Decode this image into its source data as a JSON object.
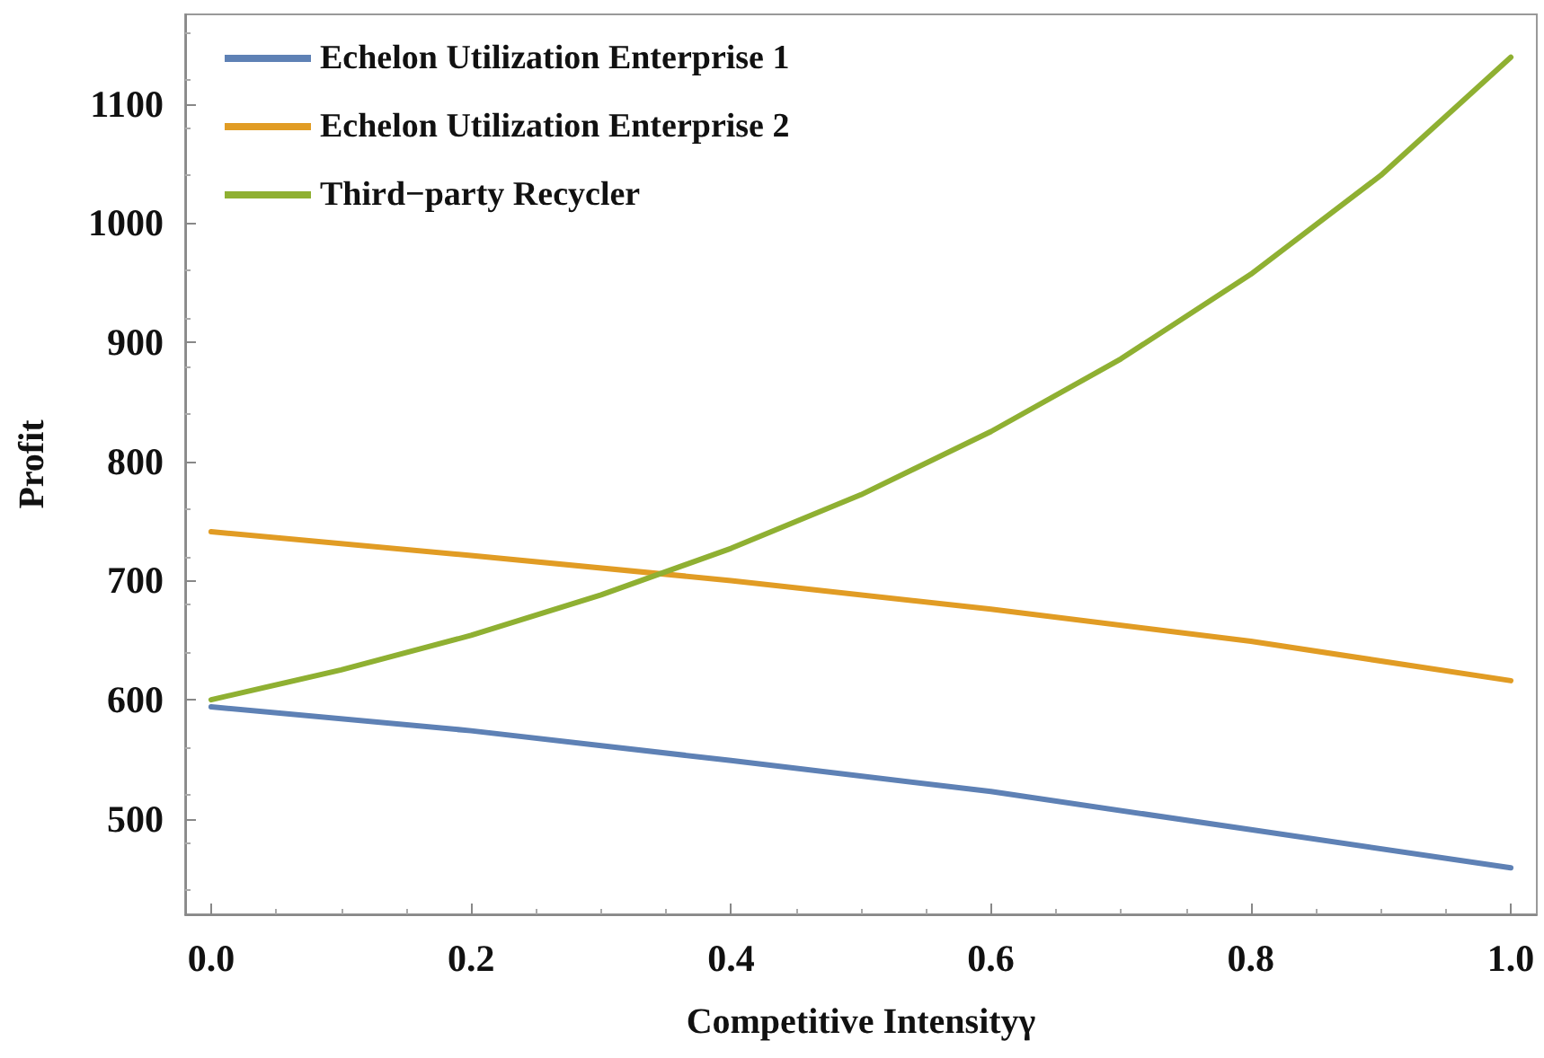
{
  "chart_data": {
    "type": "line",
    "xlabel": "Competitive Intensityγ",
    "ylabel": "Profit",
    "xlim": [
      -0.02,
      1.02
    ],
    "ylim": [
      420,
      1175
    ],
    "xticks": [
      {
        "value": 0,
        "label": "0.0"
      },
      {
        "value": 0.2,
        "label": "0.2"
      },
      {
        "value": 0.4,
        "label": "0.4"
      },
      {
        "value": 0.6,
        "label": "0.6"
      },
      {
        "value": 0.8,
        "label": "0.8"
      },
      {
        "value": 1,
        "label": "1.0"
      }
    ],
    "yticks": [
      500,
      600,
      700,
      800,
      900,
      1000,
      1100
    ],
    "grid": false,
    "legend": "top left",
    "marker": "none",
    "line_style": "solid",
    "series": [
      {
        "name": "Echelon Utilization Enterprise 1",
        "color": "#5e81b5",
        "x": [
          0,
          0.2,
          0.4,
          0.6,
          0.8,
          1
        ],
        "values": [
          594,
          574,
          549,
          523,
          491,
          459
        ]
      },
      {
        "name": "Echelon Utilization Enterprise 2",
        "color": "#e19c24",
        "x": [
          0,
          0.2,
          0.4,
          0.6,
          0.8,
          1
        ],
        "values": [
          741,
          721,
          700,
          676,
          649,
          616
        ]
      },
      {
        "name": "Third−party Recycler",
        "color": "#8fb032",
        "x": [
          0,
          0.1,
          0.2,
          0.3,
          0.4,
          0.5,
          0.6,
          0.7,
          0.8,
          0.9,
          1
        ],
        "values": [
          600,
          625,
          654,
          688,
          727,
          772,
          825,
          886,
          957,
          1040,
          1139
        ]
      }
    ]
  }
}
